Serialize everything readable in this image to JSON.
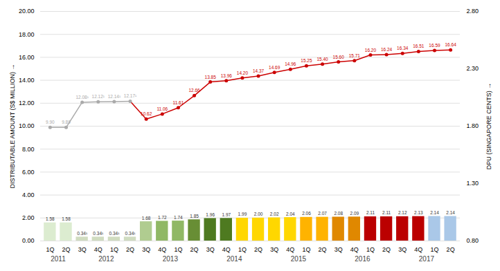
{
  "chart_data": {
    "type": "bar",
    "categories": [
      "1Q",
      "2Q",
      "3Q",
      "4Q",
      "1Q",
      "2Q",
      "3Q",
      "4Q",
      "1Q",
      "2Q",
      "3Q",
      "4Q",
      "1Q",
      "2Q",
      "3Q",
      "4Q",
      "1Q",
      "2Q",
      "3Q",
      "4Q",
      "1Q",
      "2Q",
      "3Q",
      "4Q",
      "1Q",
      "2Q"
    ],
    "category_groups": [
      "2011",
      "2011",
      "2012",
      "2012",
      "2012",
      "2012",
      "2013",
      "2013",
      "2013",
      "2013",
      "2014",
      "2014",
      "2014",
      "2014",
      "2015",
      "2015",
      "2015",
      "2015",
      "2016",
      "2016",
      "2016",
      "2016",
      "2017",
      "2017",
      "2017",
      "2017"
    ],
    "ylabel": "DISTRIBUTABLE AMOUNT (S$ MILLION)",
    "y2label": "DPU (SINGAPORE CENTS)",
    "ylim": [
      0.0,
      20.0
    ],
    "yticks": [
      {
        "value": 0.0,
        "label": "0.00"
      },
      {
        "value": 2.0,
        "label": "2.00"
      },
      {
        "value": 4.0,
        "label": "4.00"
      },
      {
        "value": 6.0,
        "label": "6.00"
      },
      {
        "value": 8.0,
        "label": "8.00"
      },
      {
        "value": 10.0,
        "label": "10.00"
      },
      {
        "value": 12.0,
        "label": "12.00"
      },
      {
        "value": 14.0,
        "label": "14.00"
      },
      {
        "value": 16.0,
        "label": "16.00"
      },
      {
        "value": 18.0,
        "label": "18.00"
      },
      {
        "value": 20.0,
        "label": "20.00"
      }
    ],
    "y2lim": [
      0.8,
      2.8
    ],
    "y2ticks": [
      {
        "value": 0.8,
        "label": "0.80"
      },
      {
        "value": 1.3,
        "label": "1.30"
      },
      {
        "value": 1.8,
        "label": "1.80"
      },
      {
        "value": 2.3,
        "label": "2.30"
      },
      {
        "value": 2.8,
        "label": "2.80"
      }
    ],
    "grid": true,
    "data_labels": true,
    "series": [
      {
        "type": "bar",
        "colors": [
          "#dcecd0",
          "#dcecd0",
          "#d0dcc0",
          "#d0dcc0",
          "#d0dcc0",
          "#d0dcc0",
          "#b0cc90",
          "#90b865",
          "#90b865",
          "#688e35",
          "#4e7a20",
          "#4e7a20",
          "#ffd700",
          "#ffd700",
          "#ffd700",
          "#ffd700",
          "#ffb300",
          "#ffb300",
          "#e08800",
          "#e08800",
          "#bb0000",
          "#bb0000",
          "#bb0000",
          "#bb0000",
          "#aac8e8",
          "#aac8e8"
        ],
        "values": [
          1.58,
          1.58,
          0.34,
          0.34,
          0.34,
          0.34,
          1.68,
          1.72,
          1.74,
          1.85,
          1.96,
          1.97,
          1.99,
          2.0,
          2.02,
          2.04,
          2.06,
          2.07,
          2.08,
          2.09,
          2.11,
          2.11,
          2.12,
          2.13,
          2.14,
          2.14
        ],
        "value_labels": [
          "1.58",
          "1.58",
          "0.34¹",
          "0.34¹",
          "0.34¹",
          "0.34¹",
          "1.68",
          "1.72",
          "1.74",
          "1.85",
          "1.96",
          "1.97",
          "1.99",
          "2.00",
          "2.02",
          "2.04",
          "2.06",
          "2.07",
          "2.08",
          "2.09",
          "2.11",
          "2.11",
          "2.12",
          "2.13",
          "2.14",
          "2.14"
        ]
      },
      {
        "type": "line",
        "marker": "circle",
        "colors": [
          "#aaaaaa",
          "#aaaaaa",
          "#aaaaaa",
          "#aaaaaa",
          "#aaaaaa",
          "#aaaaaa",
          "#cc0000",
          "#cc0000",
          "#cc0000",
          "#cc0000",
          "#cc0000",
          "#cc0000",
          "#cc0000",
          "#cc0000",
          "#cc0000",
          "#cc0000",
          "#cc0000",
          "#cc0000",
          "#cc0000",
          "#cc0000",
          "#cc0000",
          "#cc0000",
          "#cc0000",
          "#cc0000",
          "#cc0000",
          "#cc0000"
        ],
        "values": [
          9.9,
          9.89,
          12.08,
          12.12,
          12.14,
          12.17,
          10.62,
          11.06,
          11.61,
          12.66,
          13.85,
          13.96,
          14.2,
          14.37,
          14.69,
          14.96,
          15.25,
          15.4,
          15.6,
          15.71,
          16.2,
          16.24,
          16.34,
          16.51,
          16.59,
          16.64
        ],
        "value_labels": [
          "9.90",
          "9.89",
          "12.08¹",
          "12.12¹",
          "12.14¹",
          "12.17¹",
          "10.62",
          "11.06",
          "11.61",
          "12.66",
          "13.85",
          "13.96",
          "14.20",
          "14.37",
          "14.69",
          "14.96",
          "15.25",
          "15.40",
          "15.60",
          "15.71",
          "16.20",
          "16.24",
          "16.34",
          "16.51",
          "16.59",
          "16.64"
        ]
      }
    ]
  }
}
